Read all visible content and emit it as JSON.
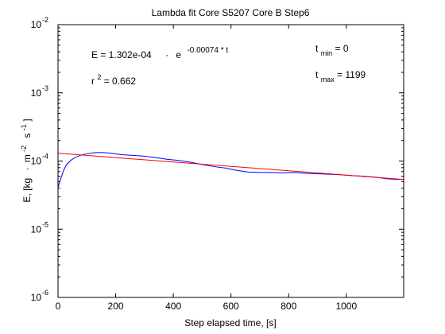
{
  "chart_data": {
    "type": "line",
    "title": "Lambda fit  Core S5207 Core B  Step6",
    "xlabel": "Step elapsed time, [s]",
    "ylabel": {
      "prefix": "E, [kg",
      "m_label": "m",
      "m_exp": "-2",
      "s_label": "s",
      "s_exp": "-1",
      "suffix": "]"
    },
    "xlim": [
      0,
      1199
    ],
    "ylim": [
      1e-06,
      0.01
    ],
    "y_scale": "log",
    "grid": false,
    "x_ticks": [
      0,
      200,
      400,
      600,
      800,
      1000
    ],
    "x_tick_labels": [
      "0",
      "200",
      "400",
      "600",
      "800",
      "1000"
    ],
    "y_ticks": [
      {
        "value": 1e-06,
        "base": "10",
        "exp": "-6"
      },
      {
        "value": 1e-05,
        "base": "10",
        "exp": "-5"
      },
      {
        "value": 0.0001,
        "base": "10",
        "exp": "-4"
      },
      {
        "value": 0.001,
        "base": "10",
        "exp": "-3"
      },
      {
        "value": 0.01,
        "base": "10",
        "exp": "-2"
      }
    ],
    "series": [
      {
        "color": "#0000ff",
        "x": [
          0,
          10,
          20,
          30,
          45,
          60,
          80,
          100,
          130,
          160,
          190,
          220,
          260,
          300,
          340,
          380,
          420,
          460,
          500,
          540,
          580,
          620,
          660,
          700,
          740,
          780,
          820,
          860,
          900,
          940,
          980,
          1020,
          1060,
          1100,
          1140,
          1170,
          1199
        ],
        "y": [
          4.1e-05,
          5.6e-05,
          7.4e-05,
          8.9e-05,
          0.000103,
          0.000113,
          0.000122,
          0.000128,
          0.000133,
          0.000133,
          0.000129,
          0.000124,
          0.000121,
          0.000118,
          0.000112,
          0.000106,
          0.000102,
          9.6e-05,
          8.9e-05,
          8.3e-05,
          7.9e-05,
          7.3e-05,
          6.9e-05,
          6.8e-05,
          6.8e-05,
          6.7e-05,
          6.8e-05,
          6.6e-05,
          6.5e-05,
          6.4e-05,
          6.3e-05,
          6.1e-05,
          6e-05,
          5.8e-05,
          5.5e-05,
          5.4e-05,
          5.4e-05
        ]
      },
      {
        "color": "#ff0000",
        "fit": {
          "a": 0.0001302,
          "b": -0.00074
        },
        "x": [
          0,
          1199
        ]
      }
    ],
    "annotations": {
      "equation": {
        "lhs": "E = 1.302e-04",
        "dot": "·",
        "base": "e",
        "exponent": "-0.00074 * t"
      },
      "r2": {
        "r": "r",
        "exp": "2",
        "value": " = 0.662"
      },
      "tmin": {
        "t": "t",
        "sub": "min",
        "value": " = 0"
      },
      "tmax": {
        "t": "t",
        "sub": "max",
        "value": " = 1199"
      }
    }
  }
}
